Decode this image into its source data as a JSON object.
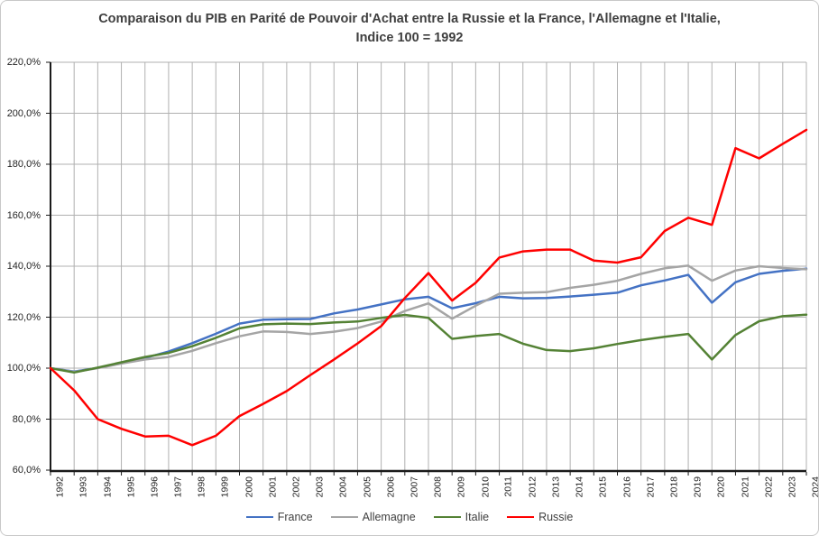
{
  "chart_data": {
    "type": "line",
    "title": "Comparaison du PIB en Parité de Pouvoir d'Achat entre la Russie et la France, l'Allemagne et l'Italie,",
    "subtitle": "Indice 100 = 1992",
    "xlabel": "",
    "ylabel": "",
    "grid": true,
    "legend_position": "bottom",
    "x": [
      1992,
      1993,
      1994,
      1995,
      1996,
      1997,
      1998,
      1999,
      2000,
      2001,
      2002,
      2003,
      2004,
      2005,
      2006,
      2007,
      2008,
      2009,
      2010,
      2011,
      2012,
      2013,
      2014,
      2015,
      2016,
      2017,
      2018,
      2019,
      2020,
      2021,
      2022,
      2023,
      2024
    ],
    "x_tick_labels": [
      "1992",
      "1993",
      "1994",
      "1995",
      "1996",
      "1997",
      "1998",
      "1999",
      "2000",
      "2001",
      "2002",
      "2003",
      "2004",
      "2005",
      "2006",
      "2007",
      "2008",
      "2009",
      "2010",
      "2011",
      "2012",
      "2013",
      "2014",
      "2015",
      "2016",
      "2017",
      "2018",
      "2019",
      "2020",
      "2021",
      "2022",
      "2023",
      "2024"
    ],
    "y_axis": {
      "min": 60,
      "max": 220,
      "step": 20,
      "tick_labels": [
        "60,0%",
        "80,0%",
        "100,0%",
        "120,0%",
        "140,0%",
        "160,0%",
        "180,0%",
        "200,0%",
        "220,0%"
      ]
    },
    "series": [
      {
        "name": "France",
        "color": "#4472C4",
        "values": [
          100,
          98.7,
          100.1,
          102.0,
          104.0,
          106.5,
          109.8,
          113.5,
          117.5,
          119.0,
          119.2,
          119.3,
          121.5,
          123.0,
          125.0,
          127.0,
          128.0,
          123.5,
          125.5,
          128.0,
          127.4,
          127.5,
          128.1,
          128.8,
          129.6,
          132.5,
          134.4,
          136.6,
          125.7,
          133.7,
          137.0,
          138.2,
          139.0
        ]
      },
      {
        "name": "Allemagne",
        "color": "#A5A5A5",
        "values": [
          100,
          98.5,
          100.0,
          101.8,
          103.4,
          104.4,
          106.8,
          109.8,
          112.5,
          114.4,
          114.2,
          113.4,
          114.3,
          115.7,
          118.3,
          122.4,
          125.4,
          119.4,
          124.5,
          129.2,
          129.6,
          129.8,
          131.5,
          132.7,
          134.3,
          137.0,
          139.2,
          140.2,
          134.3,
          138.3,
          140.0,
          139.3,
          138.8
        ]
      },
      {
        "name": "Italie",
        "color": "#548235",
        "values": [
          100,
          98.3,
          100.2,
          102.3,
          104.4,
          106.0,
          108.6,
          111.9,
          115.6,
          117.2,
          117.5,
          117.3,
          117.9,
          118.3,
          119.7,
          120.9,
          119.7,
          111.5,
          112.6,
          113.4,
          109.6,
          107.1,
          106.7,
          107.8,
          109.5,
          111.0,
          112.3,
          113.4,
          103.4,
          113.0,
          118.4,
          120.4,
          121.0
        ]
      },
      {
        "name": "Russie",
        "color": "#FF0000",
        "values": [
          100,
          91.3,
          80.0,
          76.2,
          73.2,
          73.5,
          69.8,
          73.5,
          81.2,
          86.0,
          91.0,
          97.3,
          103.4,
          109.7,
          116.5,
          127.5,
          137.3,
          126.5,
          133.5,
          143.4,
          145.8,
          146.5,
          146.5,
          142.2,
          141.4,
          143.5,
          153.8,
          159.0,
          156.2,
          186.3,
          182.3,
          188.0,
          193.5
        ]
      }
    ]
  },
  "styles": {
    "grid_color": "#b0b0b0",
    "axis_color": "#1a1a1a",
    "title_color": "#3f3f3f",
    "tick_label_color": "#262626",
    "legend_text_color": "#404040",
    "frame_border_color": "#c8c8c8",
    "background": "#ffffff"
  }
}
